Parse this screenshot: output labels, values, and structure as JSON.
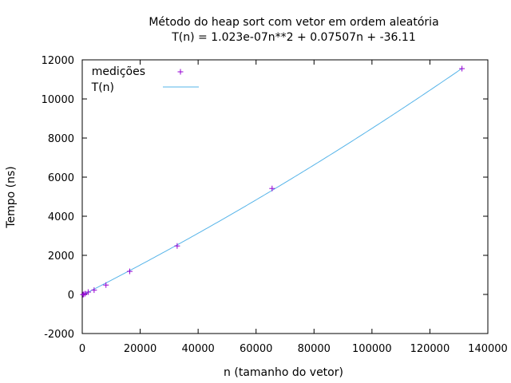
{
  "chart_data": {
    "type": "scatter",
    "title": "Método do heap sort com vetor em ordem aleatória",
    "subtitle": "T(n) = 1.023e-07n**2 + 0.07507n + -36.11",
    "xlabel": "n (tamanho do vetor)",
    "ylabel": "Tempo (ns)",
    "xlim": [
      0,
      140000
    ],
    "ylim": [
      -2000,
      12000
    ],
    "x_ticks": [
      "0",
      "20000",
      "40000",
      "60000",
      "80000",
      "100000",
      "120000",
      "140000"
    ],
    "y_ticks": [
      "-2000",
      "0",
      "2000",
      "4000",
      "6000",
      "8000",
      "10000",
      "12000"
    ],
    "grid": false,
    "legend_position": "top-left",
    "series": [
      {
        "name": "medições",
        "kind": "points",
        "marker": "+",
        "color": "#9400d3",
        "x": [
          256,
          512,
          1024,
          2048,
          4096,
          8192,
          16384,
          32768,
          65536,
          131072
        ],
        "y": [
          -10,
          5,
          40,
          120,
          220,
          480,
          1180,
          2480,
          5420,
          11550
        ]
      },
      {
        "name": "T(n)",
        "kind": "fit",
        "color": "#56b4e9",
        "formula": {
          "a": 1.023e-07,
          "b": 0.07507,
          "c": -36.11
        }
      }
    ]
  }
}
